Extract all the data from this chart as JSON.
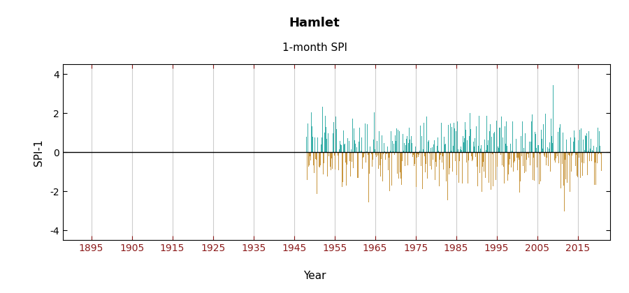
{
  "title": "Hamlet",
  "subtitle": "1-month SPI",
  "xlabel": "Year",
  "ylabel": "SPI-1",
  "ylim": [
    -4.5,
    4.5
  ],
  "yticks": [
    -4,
    -2,
    0,
    2,
    4
  ],
  "xlim": [
    1888,
    2023
  ],
  "xticks": [
    1895,
    1905,
    1915,
    1925,
    1935,
    1945,
    1955,
    1965,
    1975,
    1985,
    1995,
    2005,
    2015
  ],
  "data_start_year": 1948,
  "n_months": 876,
  "positive_color": "#3aafa9",
  "negative_color": "#c8963e",
  "background_color": "#ffffff",
  "grid_color": "#cccccc",
  "title_fontsize": 13,
  "subtitle_fontsize": 11,
  "axis_label_fontsize": 11,
  "tick_fontsize": 10,
  "xtick_color": "#8b1a1a",
  "ytick_color": "#000000"
}
